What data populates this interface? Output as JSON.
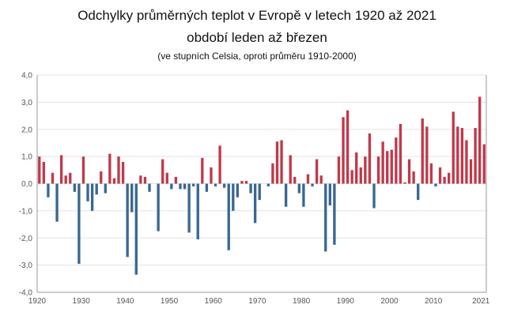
{
  "chart_data": {
    "type": "bar",
    "title": "Odchylky průměrných teplot v Evropě v letech 1920 až 2021",
    "subtitle": "období leden až březen",
    "note": "(ve stupních Celsia, oproti průměru 1910-2000)",
    "x_start": 1920,
    "x_end": 2021,
    "ylim": [
      -4.0,
      4.0
    ],
    "y_ticks": [
      "4,0",
      "3,0",
      "2,0",
      "1,0",
      "0,0",
      "-1,0",
      "-2,0",
      "-3,0",
      "-4,0"
    ],
    "y_tick_values": [
      4,
      3,
      2,
      1,
      0,
      -1,
      -2,
      -3,
      -4
    ],
    "x_ticks": [
      "1920",
      "1930",
      "1940",
      "1950",
      "1960",
      "1970",
      "1980",
      "1990",
      "2000",
      "2010",
      "2021"
    ],
    "x_tick_values": [
      1920,
      1930,
      1940,
      1950,
      1960,
      1970,
      1980,
      1990,
      2000,
      2010,
      2021
    ],
    "grid": true,
    "colors": {
      "positive": "#c0394a",
      "negative": "#3a6791",
      "grid": "#e3e3e3",
      "axis": "#999999"
    },
    "years": [
      1920,
      1921,
      1922,
      1923,
      1924,
      1925,
      1926,
      1927,
      1928,
      1929,
      1930,
      1931,
      1932,
      1933,
      1934,
      1935,
      1936,
      1937,
      1938,
      1939,
      1940,
      1941,
      1942,
      1943,
      1944,
      1945,
      1946,
      1947,
      1948,
      1949,
      1950,
      1951,
      1952,
      1953,
      1954,
      1955,
      1956,
      1957,
      1958,
      1959,
      1960,
      1961,
      1962,
      1963,
      1964,
      1965,
      1966,
      1967,
      1968,
      1969,
      1970,
      1971,
      1972,
      1973,
      1974,
      1975,
      1976,
      1977,
      1978,
      1979,
      1980,
      1981,
      1982,
      1983,
      1984,
      1985,
      1986,
      1987,
      1988,
      1989,
      1990,
      1991,
      1992,
      1993,
      1994,
      1995,
      1996,
      1997,
      1998,
      1999,
      2000,
      2001,
      2002,
      2003,
      2004,
      2005,
      2006,
      2007,
      2008,
      2009,
      2010,
      2011,
      2012,
      2013,
      2014,
      2015,
      2016,
      2017,
      2018,
      2019,
      2020,
      2021
    ],
    "values": [
      1.0,
      0.8,
      -0.5,
      0.4,
      -1.4,
      1.05,
      0.3,
      0.4,
      -0.3,
      -2.95,
      1.0,
      -0.65,
      -1.0,
      -0.4,
      0.45,
      -0.35,
      1.1,
      0.2,
      1.0,
      0.8,
      -2.7,
      -1.05,
      -3.35,
      0.3,
      0.25,
      -0.3,
      0.0,
      -1.75,
      0.9,
      0.4,
      -0.2,
      0.25,
      -0.2,
      -0.2,
      -1.8,
      -0.1,
      -2.05,
      0.95,
      -0.3,
      0.6,
      -0.1,
      1.4,
      -0.15,
      -2.45,
      -1.0,
      -0.5,
      0.1,
      0.1,
      -0.35,
      -1.45,
      -0.6,
      0.0,
      -0.1,
      0.75,
      1.55,
      1.6,
      -0.85,
      1.05,
      0.25,
      -0.35,
      -0.85,
      0.35,
      -0.1,
      0.9,
      0.3,
      -2.5,
      -0.8,
      -2.25,
      1.0,
      2.45,
      2.7,
      0.5,
      1.15,
      0.6,
      1.0,
      1.85,
      -0.9,
      1.0,
      1.55,
      1.2,
      1.25,
      1.7,
      2.2,
      0.05,
      0.9,
      0.45,
      -0.6,
      2.4,
      2.1,
      0.75,
      -0.1,
      0.6,
      0.25,
      0.4,
      2.65,
      2.1,
      2.05,
      1.6,
      0.9,
      2.05,
      3.2,
      1.45
    ]
  }
}
